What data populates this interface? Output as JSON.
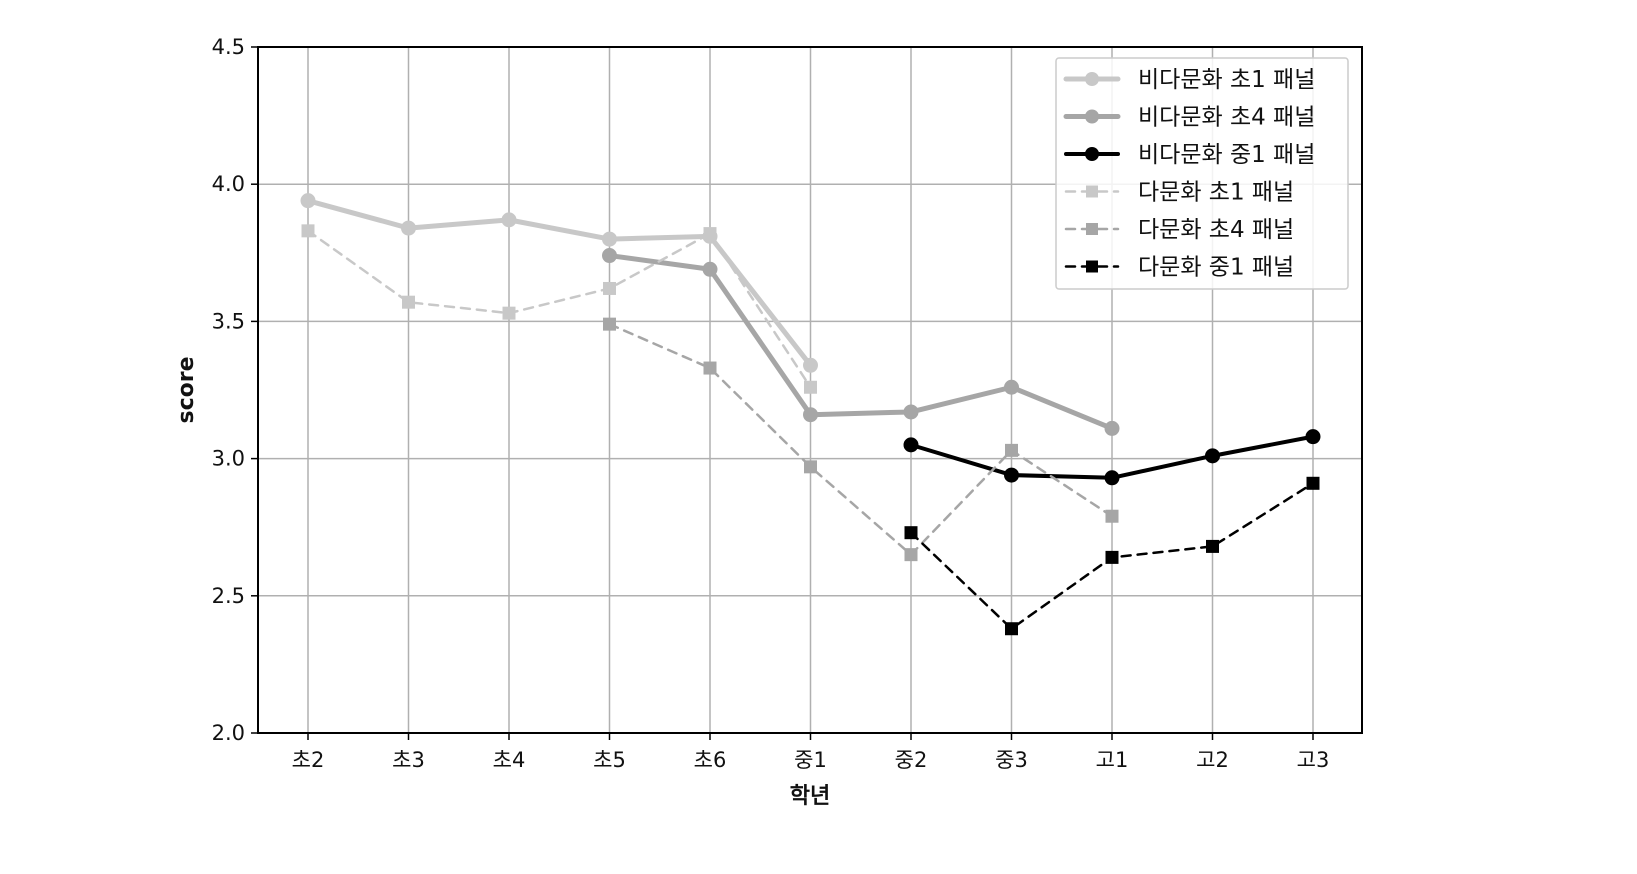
{
  "chart_data": {
    "type": "line",
    "xlabel": "학년",
    "ylabel": "score",
    "categories": [
      "초2",
      "초3",
      "초4",
      "초5",
      "초6",
      "중1",
      "중2",
      "중3",
      "고1",
      "고2",
      "고3"
    ],
    "ylim": [
      2.0,
      4.5
    ],
    "yticks": [
      "2.0",
      "2.5",
      "3.0",
      "3.5",
      "4.0",
      "4.5"
    ],
    "grid": true,
    "legend_position": "top-right",
    "series": [
      {
        "name": "비다문화 초1 패널",
        "values": [
          3.94,
          3.84,
          3.87,
          3.8,
          3.81,
          3.34,
          null,
          null,
          null,
          null,
          null
        ],
        "color": "#c8c8c8",
        "line": "solid",
        "marker": "circle"
      },
      {
        "name": "비다문화 초4 패널",
        "values": [
          null,
          null,
          null,
          3.74,
          3.69,
          3.16,
          3.17,
          3.26,
          3.11,
          null,
          null
        ],
        "color": "#a6a6a6",
        "line": "solid",
        "marker": "circle"
      },
      {
        "name": "비다문화 중1 패널",
        "values": [
          null,
          null,
          null,
          null,
          null,
          null,
          3.05,
          2.94,
          2.93,
          3.01,
          3.08
        ],
        "color": "#000000",
        "line": "solid",
        "marker": "circle"
      },
      {
        "name": "다문화 초1 패널",
        "values": [
          3.83,
          3.57,
          3.53,
          3.62,
          3.82,
          3.26,
          null,
          null,
          null,
          null,
          null
        ],
        "color": "#c8c8c8",
        "line": "dashed",
        "marker": "square"
      },
      {
        "name": "다문화 초4 패널",
        "values": [
          null,
          null,
          null,
          3.49,
          3.33,
          2.97,
          2.65,
          3.03,
          2.79,
          null,
          null
        ],
        "color": "#a6a6a6",
        "line": "dashed",
        "marker": "square"
      },
      {
        "name": "다문화 중1 패널",
        "values": [
          null,
          null,
          null,
          null,
          null,
          null,
          2.73,
          2.38,
          2.64,
          2.68,
          2.91
        ],
        "color": "#000000",
        "line": "dashed",
        "marker": "square"
      }
    ]
  }
}
